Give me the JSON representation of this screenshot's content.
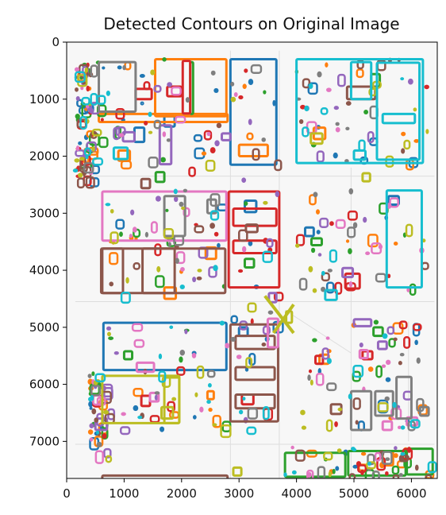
{
  "chart_data": {
    "type": "image",
    "title": "Detected Contours on Original Image",
    "xlabel": "",
    "ylabel": "",
    "xlim": [
      0,
      6450
    ],
    "ylim": [
      7650,
      0
    ],
    "y_inverted": true,
    "xticks": [
      0,
      1000,
      2000,
      3000,
      4000,
      5000,
      6000
    ],
    "yticks": [
      0,
      1000,
      2000,
      3000,
      4000,
      5000,
      6000,
      7000
    ],
    "grid": false,
    "series": [
      {
        "color": "#1f77b4",
        "rects": [
          [
            420,
            1120,
            120,
            90
          ],
          [
            1300,
            1060,
            220,
            160
          ],
          [
            2850,
            300,
            3650,
            2150
          ],
          [
            1180,
            1500,
            1350,
            1750
          ],
          [
            640,
            4920,
            2780,
            5750
          ],
          [
            3100,
            2780,
            3300,
            2980
          ],
          [
            4150,
            3250,
            4300,
            3400
          ],
          [
            5600,
            2700,
            5780,
            2850
          ],
          [
            1700,
            1300,
            1880,
            1480
          ],
          [
            3000,
            5000,
            3150,
            5150
          ]
        ]
      },
      {
        "color": "#ff7f0e",
        "rects": [
          [
            560,
            1260,
            2800,
            1400
          ],
          [
            1540,
            300,
            2780,
            1300
          ],
          [
            3000,
            1800,
            3500,
            2000
          ],
          [
            2420,
            3600,
            2600,
            3800
          ],
          [
            2450,
            6120,
            2560,
            6260
          ],
          [
            4400,
            5480,
            4560,
            5640
          ],
          [
            900,
            1900,
            1100,
            2080
          ],
          [
            1700,
            4300,
            1900,
            4500
          ],
          [
            5500,
            7170,
            5680,
            7420
          ],
          [
            4300,
            1500,
            4500,
            1700
          ]
        ]
      },
      {
        "color": "#2ca02c",
        "rects": [
          [
            2150,
            350,
            2200,
            1260
          ],
          [
            3800,
            7200,
            4850,
            7620
          ],
          [
            4900,
            7170,
            5900,
            7600
          ],
          [
            5920,
            7130,
            6370,
            7580
          ],
          [
            5300,
            560,
            5450,
            780
          ],
          [
            1550,
            2280,
            1700,
            2450
          ],
          [
            4260,
            3440,
            4440,
            3560
          ],
          [
            1000,
            5420,
            1140,
            5560
          ],
          [
            5340,
            5000,
            5500,
            5150
          ],
          [
            3100,
            3800,
            3260,
            3950
          ]
        ]
      },
      {
        "color": "#d62728",
        "rects": [
          [
            2820,
            2620,
            3700,
            4300
          ],
          [
            2900,
            2920,
            3650,
            3220
          ],
          [
            2900,
            3480,
            3650,
            3700
          ],
          [
            4850,
            4060,
            5100,
            4320
          ],
          [
            1200,
            820,
            1480,
            1000
          ],
          [
            1750,
            780,
            2000,
            950
          ],
          [
            5150,
            5420,
            5320,
            5560
          ],
          [
            3050,
            6180,
            3250,
            6350
          ],
          [
            1300,
            6200,
            1450,
            6380
          ],
          [
            4330,
            5500,
            4460,
            5640
          ],
          [
            2020,
            330,
            2150,
            1250
          ]
        ]
      },
      {
        "color": "#9467bd",
        "rects": [
          [
            1620,
            1460,
            1820,
            2140
          ],
          [
            5000,
            4860,
            5300,
            4980
          ],
          [
            4800,
            3960,
            4980,
            4120
          ],
          [
            980,
            1580,
            1180,
            1740
          ],
          [
            5420,
            5250,
            5570,
            5380
          ],
          [
            2700,
            1600,
            2850,
            1720
          ],
          [
            3520,
            4400,
            3650,
            4560
          ],
          [
            500,
            6600,
            700,
            6800
          ]
        ]
      },
      {
        "color": "#8c564b",
        "rects": [
          [
            620,
            7600,
            2800,
            7720
          ],
          [
            620,
            3620,
            2760,
            4400
          ],
          [
            600,
            3620,
            980,
            4400
          ],
          [
            1320,
            3620,
            1880,
            4400
          ],
          [
            3120,
            3200,
            3320,
            3330
          ],
          [
            2850,
            4950,
            3680,
            6650
          ],
          [
            2940,
            5150,
            3620,
            5380
          ],
          [
            2940,
            5700,
            3620,
            5920
          ],
          [
            2940,
            6180,
            3620,
            6420
          ],
          [
            4880,
            780,
            5370,
            1000
          ],
          [
            4600,
            6350,
            4780,
            6520
          ],
          [
            1300,
            2400,
            1450,
            2560
          ]
        ]
      },
      {
        "color": "#e377c2",
        "rects": [
          [
            620,
            2620,
            2780,
            3480
          ],
          [
            3500,
            4850,
            3680,
            5350
          ],
          [
            1220,
            5620,
            1520,
            5780
          ],
          [
            5100,
            5400,
            5240,
            5540
          ],
          [
            5500,
            6650,
            5660,
            6800
          ],
          [
            5920,
            6580,
            6100,
            6720
          ],
          [
            1450,
            6150,
            1600,
            6300
          ]
        ]
      },
      {
        "color": "#7f7f7f",
        "rects": [
          [
            560,
            350,
            1200,
            1220
          ],
          [
            4950,
            6120,
            5300,
            6800
          ],
          [
            5370,
            6120,
            5680,
            6550
          ],
          [
            5740,
            5870,
            6000,
            6600
          ],
          [
            1700,
            2700,
            2060,
            3400
          ],
          [
            2450,
            2760,
            2600,
            3000
          ],
          [
            6150,
            6400,
            6300,
            6550
          ]
        ]
      },
      {
        "color": "#bcbd22",
        "rects": [
          [
            620,
            5850,
            1960,
            6680
          ],
          [
            1700,
            5880,
            1960,
            6680
          ],
          [
            3820,
            4720,
            3920,
            4920
          ],
          [
            1650,
            6400,
            1850,
            6600
          ],
          [
            4250,
            1600,
            4450,
            1780
          ],
          [
            5150,
            2300,
            5280,
            2440
          ],
          [
            2900,
            7460,
            3040,
            7600
          ]
        ]
      },
      {
        "color": "#17becf",
        "rects": [
          [
            4000,
            300,
            6200,
            2120
          ],
          [
            4950,
            350,
            5300,
            1000
          ],
          [
            5400,
            360,
            6140,
            2060
          ],
          [
            5500,
            1260,
            6060,
            1420
          ],
          [
            5570,
            2600,
            6180,
            4300
          ],
          [
            820,
            1850,
            1060,
            2050
          ],
          [
            4500,
            4350,
            4700,
            4520
          ],
          [
            5000,
            1900,
            5200,
            2060
          ]
        ]
      }
    ],
    "blobs_per_series": 55
  }
}
